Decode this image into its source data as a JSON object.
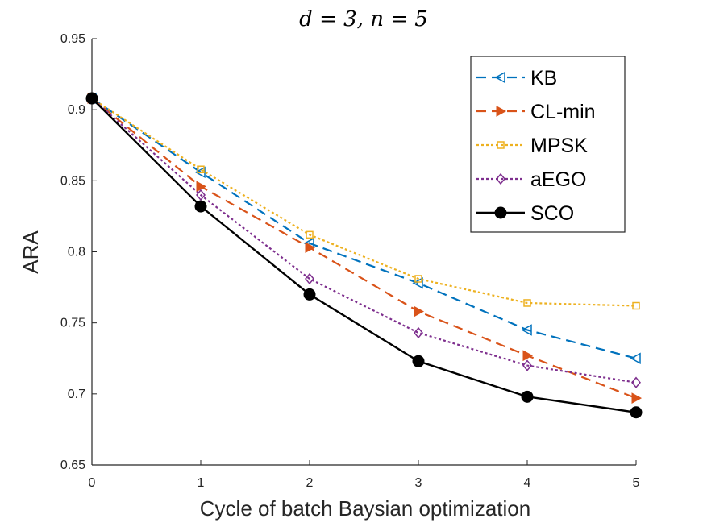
{
  "chart_data": {
    "type": "line",
    "title": "d = 3, n = 5",
    "xlabel": "Cycle of batch Baysian optimization",
    "ylabel": "ARA",
    "x": [
      0,
      1,
      2,
      3,
      4,
      5
    ],
    "xlim": [
      0,
      5
    ],
    "ylim": [
      0.65,
      0.95
    ],
    "xticks": [
      "0",
      "1",
      "2",
      "3",
      "4",
      "5"
    ],
    "yticks": [
      "0.65",
      "0.7",
      "0.75",
      "0.8",
      "0.85",
      "0.9",
      "0.95"
    ],
    "grid": false,
    "legend_position": "top-right",
    "series": [
      {
        "name": "KB",
        "values": [
          0.908,
          0.856,
          0.806,
          0.778,
          0.745,
          0.725
        ],
        "color": "#0072BD",
        "dash": "dashed",
        "marker": "triangle-left"
      },
      {
        "name": "CL-min",
        "values": [
          0.908,
          0.846,
          0.803,
          0.758,
          0.727,
          0.697
        ],
        "color": "#D95319",
        "dash": "dashed",
        "marker": "triangle-right"
      },
      {
        "name": "MPSK",
        "values": [
          0.908,
          0.858,
          0.812,
          0.781,
          0.764,
          0.762
        ],
        "color": "#EDB120",
        "dash": "dotted",
        "marker": "square"
      },
      {
        "name": "aEGO",
        "values": [
          0.908,
          0.84,
          0.781,
          0.743,
          0.72,
          0.708
        ],
        "color": "#7E2F8E",
        "dash": "dotted",
        "marker": "diamond"
      },
      {
        "name": "SCO",
        "values": [
          0.908,
          0.832,
          0.77,
          0.723,
          0.698,
          0.687
        ],
        "color": "#000000",
        "dash": "solid",
        "marker": "circle"
      }
    ]
  }
}
